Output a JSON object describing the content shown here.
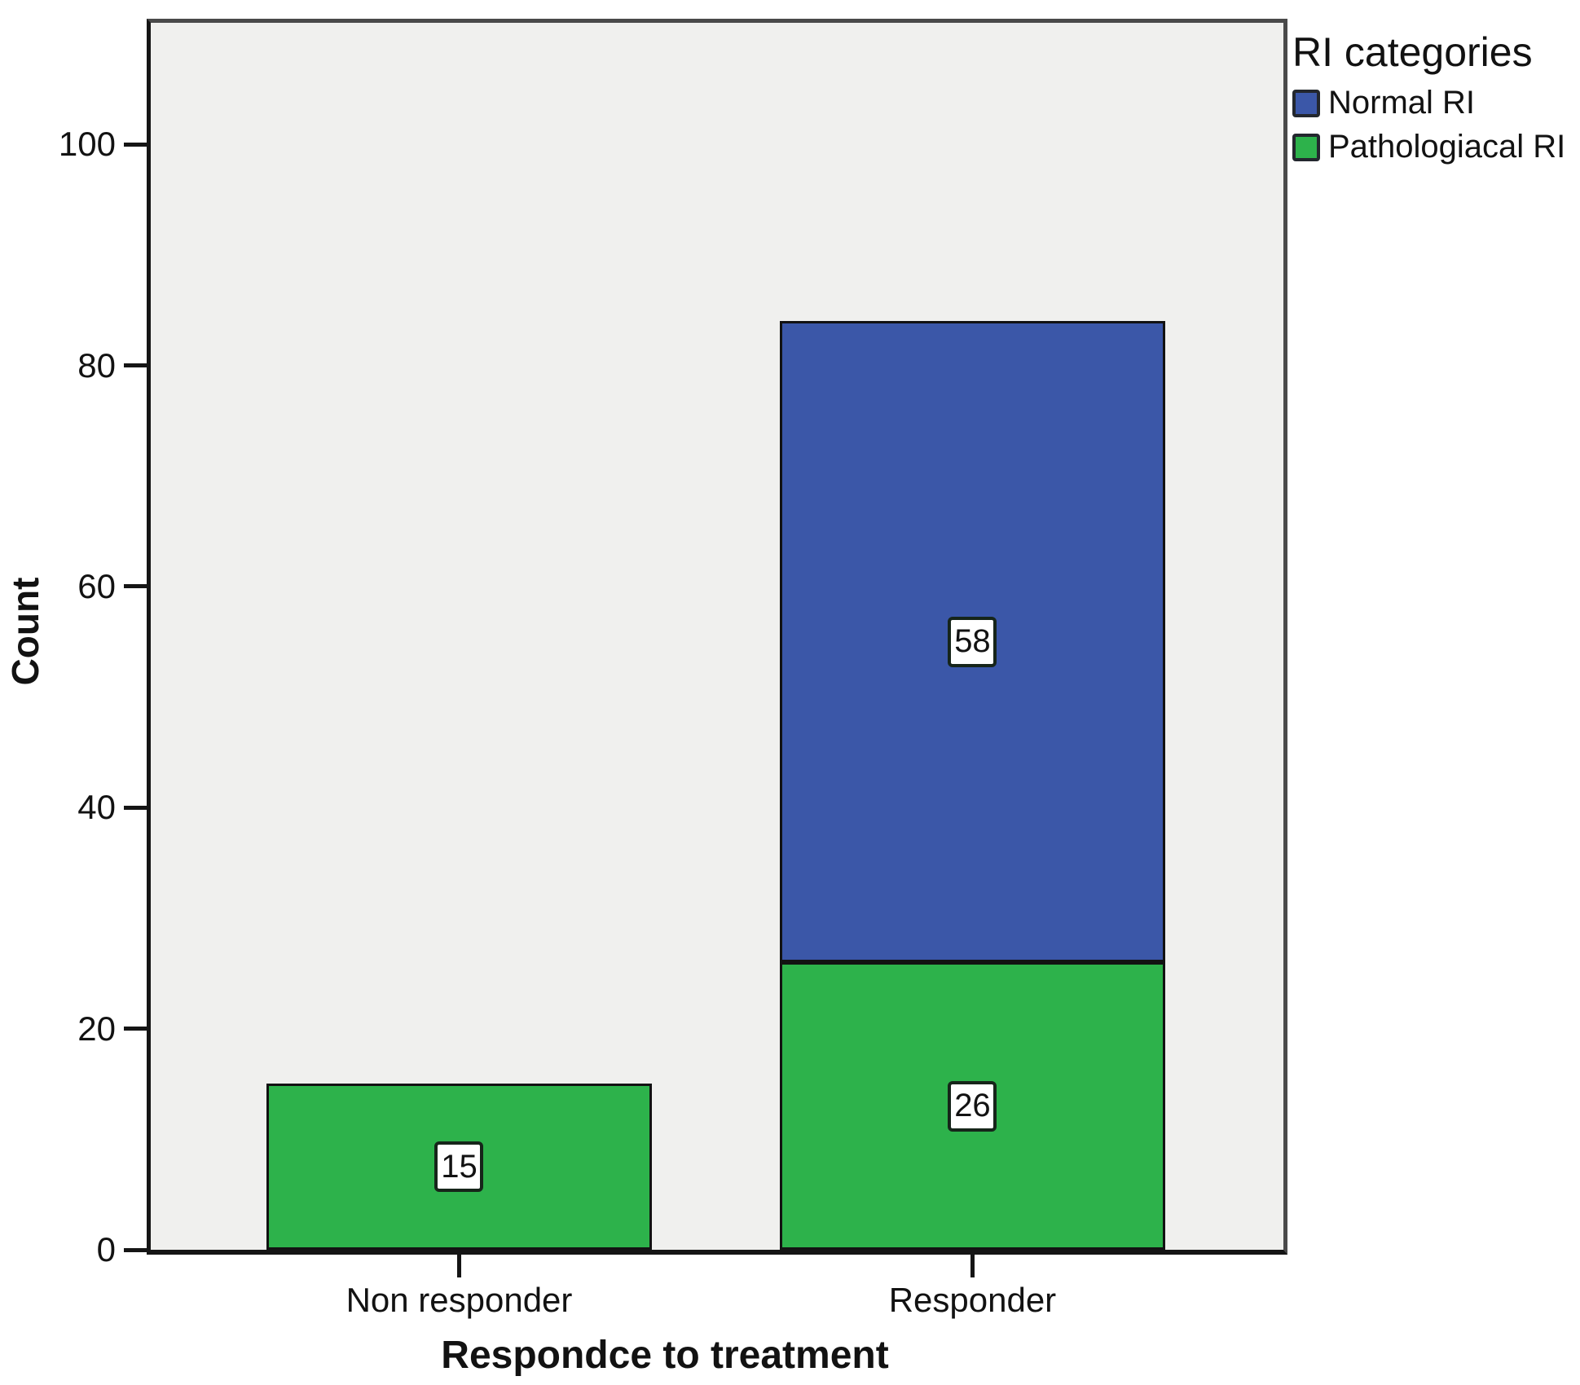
{
  "chart_data": {
    "type": "bar",
    "stacked": true,
    "title": "",
    "xlabel": "Respondce to treatment",
    "ylabel": "Count",
    "categories": [
      "Non responder",
      "Responder"
    ],
    "series": [
      {
        "name": "Normal RI",
        "color": "#3B57A8",
        "values": [
          0,
          58
        ],
        "labels": [
          null,
          "58"
        ]
      },
      {
        "name": "Pathologiacal RI",
        "color": "#2DB24B",
        "values": [
          15,
          26
        ],
        "labels": [
          "15",
          "26"
        ]
      }
    ],
    "totals": [
      15,
      84
    ],
    "ylim": [
      0,
      111
    ],
    "yticks": [
      0,
      20,
      40,
      60,
      80,
      100
    ],
    "grid": false,
    "bar_value_labels_shown": true,
    "plot_background": "#F0F0EE",
    "legend": {
      "title": "RI categories",
      "position": "top-right",
      "items": [
        {
          "label": "Normal RI",
          "color": "#3B57A8"
        },
        {
          "label": "Pathologiacal RI",
          "color": "#2DB24B"
        }
      ]
    }
  }
}
